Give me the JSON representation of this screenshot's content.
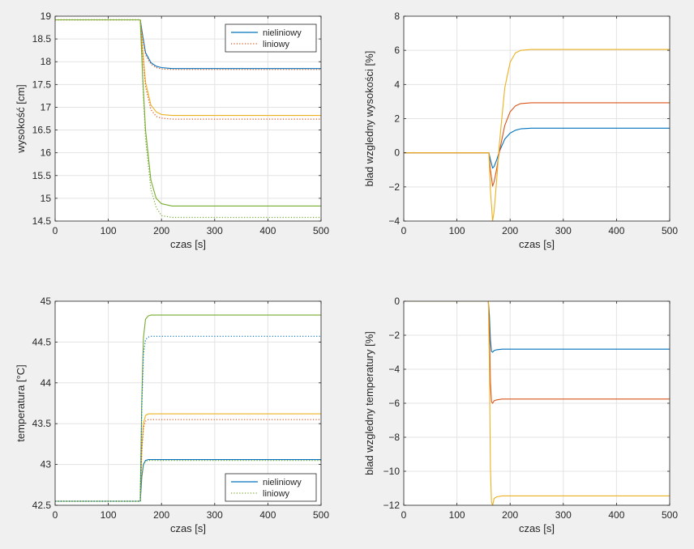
{
  "chart_data": [
    {
      "type": "line",
      "title": "",
      "xlabel": "czas [s]",
      "ylabel": "wysokość [cm]",
      "xlim": [
        0,
        500
      ],
      "ylim": [
        14.5,
        19
      ],
      "xticks": [
        0,
        100,
        200,
        300,
        400,
        500
      ],
      "yticks": [
        14.5,
        15,
        15.5,
        16,
        16.5,
        17,
        17.5,
        18,
        18.5,
        19
      ],
      "grid": true,
      "legend": {
        "position": "top-right",
        "entries": [
          "nieliniowy",
          "liniowy"
        ]
      },
      "colors": [
        "#0072BD",
        "#D95319",
        "#EDB120",
        "#77AC30"
      ],
      "series": [
        {
          "style": "solid",
          "color": "#0072BD",
          "x": [
            0,
            160,
            165,
            170,
            180,
            190,
            200,
            220,
            500
          ],
          "y": [
            18.92,
            18.92,
            18.55,
            18.2,
            17.98,
            17.9,
            17.87,
            17.85,
            17.85
          ]
        },
        {
          "style": "dotted",
          "color": "#D95319",
          "x": [
            0,
            160,
            165,
            170,
            180,
            190,
            200,
            220,
            500
          ],
          "y": [
            18.92,
            18.92,
            18.5,
            18.15,
            17.95,
            17.87,
            17.84,
            17.83,
            17.83
          ]
        },
        {
          "style": "solid",
          "color": "#EDB120",
          "x": [
            0,
            160,
            165,
            170,
            180,
            190,
            200,
            220,
            500
          ],
          "y": [
            18.92,
            18.92,
            18.2,
            17.55,
            17.05,
            16.9,
            16.84,
            16.82,
            16.82
          ]
        },
        {
          "style": "dotted",
          "color": "#D95319",
          "x": [
            0,
            160,
            165,
            170,
            180,
            190,
            200,
            220,
            500
          ],
          "y": [
            18.92,
            18.92,
            18.15,
            17.45,
            16.95,
            16.8,
            16.76,
            16.74,
            16.74
          ]
        },
        {
          "style": "solid",
          "color": "#77AC30",
          "x": [
            0,
            160,
            165,
            170,
            180,
            190,
            200,
            220,
            500
          ],
          "y": [
            18.92,
            18.92,
            17.6,
            16.5,
            15.4,
            15.0,
            14.88,
            14.83,
            14.83
          ]
        },
        {
          "style": "dotted",
          "color": "#77AC30",
          "x": [
            0,
            160,
            165,
            170,
            180,
            190,
            200,
            220,
            500
          ],
          "y": [
            18.92,
            18.92,
            17.5,
            16.3,
            15.2,
            14.8,
            14.62,
            14.58,
            14.58
          ]
        }
      ]
    },
    {
      "type": "line",
      "title": "",
      "xlabel": "czas [s]",
      "ylabel": "blad wzgledny wysokości [%]",
      "xlim": [
        0,
        500
      ],
      "ylim": [
        -4,
        8
      ],
      "xticks": [
        0,
        100,
        200,
        300,
        400,
        500
      ],
      "yticks": [
        -4,
        -2,
        0,
        2,
        4,
        6,
        8
      ],
      "grid": true,
      "series": [
        {
          "style": "solid",
          "color": "#0072BD",
          "x": [
            0,
            157,
            160,
            163,
            167,
            170,
            175,
            180,
            190,
            200,
            210,
            220,
            240,
            500
          ],
          "y": [
            0,
            0,
            0,
            -0.4,
            -0.9,
            -0.8,
            -0.4,
            0.1,
            0.8,
            1.15,
            1.32,
            1.4,
            1.44,
            1.44
          ]
        },
        {
          "style": "solid",
          "color": "#D95319",
          "x": [
            0,
            157,
            160,
            163,
            167,
            170,
            175,
            180,
            190,
            200,
            210,
            220,
            240,
            500
          ],
          "y": [
            0,
            0,
            0,
            -1.0,
            -1.95,
            -1.7,
            -0.9,
            0.1,
            1.6,
            2.4,
            2.75,
            2.88,
            2.93,
            2.93
          ]
        },
        {
          "style": "solid",
          "color": "#EDB120",
          "x": [
            0,
            157,
            160,
            163,
            167,
            170,
            175,
            180,
            190,
            200,
            210,
            220,
            240,
            500
          ],
          "y": [
            0,
            0,
            0,
            -2.2,
            -4.0,
            -3.4,
            -1.5,
            0.6,
            3.8,
            5.3,
            5.85,
            6.0,
            6.05,
            6.05
          ]
        }
      ]
    },
    {
      "type": "line",
      "title": "",
      "xlabel": "czas [s]",
      "ylabel": "temperatura [°C]",
      "xlim": [
        0,
        500
      ],
      "ylim": [
        42.5,
        45
      ],
      "xticks": [
        0,
        100,
        200,
        300,
        400,
        500
      ],
      "yticks": [
        42.5,
        43,
        43.5,
        44,
        44.5,
        45
      ],
      "grid": true,
      "legend": {
        "position": "bottom-right",
        "entries": [
          "nieliniowy",
          "liniowy"
        ]
      },
      "series": [
        {
          "style": "solid",
          "color": "#0072BD",
          "x": [
            0,
            160,
            163,
            166,
            170,
            175,
            180,
            500
          ],
          "y": [
            42.55,
            42.55,
            42.85,
            43.0,
            43.05,
            43.06,
            43.06,
            43.06
          ]
        },
        {
          "style": "dotted",
          "color": "#77AC30",
          "x": [
            0,
            160,
            163,
            166,
            170,
            175,
            180,
            500
          ],
          "y": [
            42.55,
            42.55,
            42.85,
            42.99,
            43.04,
            43.05,
            43.05,
            43.05
          ]
        },
        {
          "style": "solid",
          "color": "#EDB120",
          "x": [
            0,
            160,
            163,
            166,
            170,
            175,
            180,
            500
          ],
          "y": [
            42.55,
            42.55,
            43.2,
            43.5,
            43.6,
            43.62,
            43.62,
            43.62
          ]
        },
        {
          "style": "dotted",
          "color": "#D95319",
          "x": [
            0,
            160,
            163,
            166,
            170,
            175,
            180,
            500
          ],
          "y": [
            42.55,
            42.55,
            43.15,
            43.45,
            43.53,
            43.55,
            43.55,
            43.55
          ]
        },
        {
          "style": "solid",
          "color": "#77AC30",
          "x": [
            0,
            160,
            163,
            166,
            170,
            175,
            180,
            500
          ],
          "y": [
            42.55,
            42.55,
            43.8,
            44.55,
            44.78,
            44.82,
            44.83,
            44.83
          ]
        },
        {
          "style": "dotted",
          "color": "#0072BD",
          "x": [
            0,
            160,
            163,
            166,
            170,
            175,
            180,
            500
          ],
          "y": [
            42.55,
            42.55,
            43.7,
            44.35,
            44.53,
            44.56,
            44.57,
            44.57
          ]
        }
      ]
    },
    {
      "type": "line",
      "title": "",
      "xlabel": "czas [s]",
      "ylabel": "blad wzgledny temperatury [%]",
      "xlim": [
        0,
        500
      ],
      "ylim": [
        -12,
        0
      ],
      "xticks": [
        0,
        100,
        200,
        300,
        400,
        500
      ],
      "yticks": [
        -12,
        -10,
        -8,
        -6,
        -4,
        -2,
        0
      ],
      "grid": true,
      "series": [
        {
          "style": "solid",
          "color": "#0072BD",
          "x": [
            0,
            159,
            161,
            163,
            165,
            167,
            170,
            175,
            185,
            500
          ],
          "y": [
            0,
            0,
            -0.8,
            -2.3,
            -2.95,
            -3.0,
            -2.9,
            -2.85,
            -2.82,
            -2.82
          ]
        },
        {
          "style": "solid",
          "color": "#D95319",
          "x": [
            0,
            159,
            161,
            163,
            165,
            167,
            170,
            175,
            185,
            500
          ],
          "y": [
            0,
            0,
            -1.5,
            -4.8,
            -5.9,
            -6.0,
            -5.85,
            -5.8,
            -5.75,
            -5.75
          ]
        },
        {
          "style": "solid",
          "color": "#EDB120",
          "x": [
            0,
            159,
            161,
            163,
            165,
            167,
            170,
            175,
            185,
            500
          ],
          "y": [
            0,
            0,
            -3.5,
            -9.8,
            -11.8,
            -12.0,
            -11.6,
            -11.5,
            -11.45,
            -11.45
          ]
        }
      ]
    }
  ]
}
